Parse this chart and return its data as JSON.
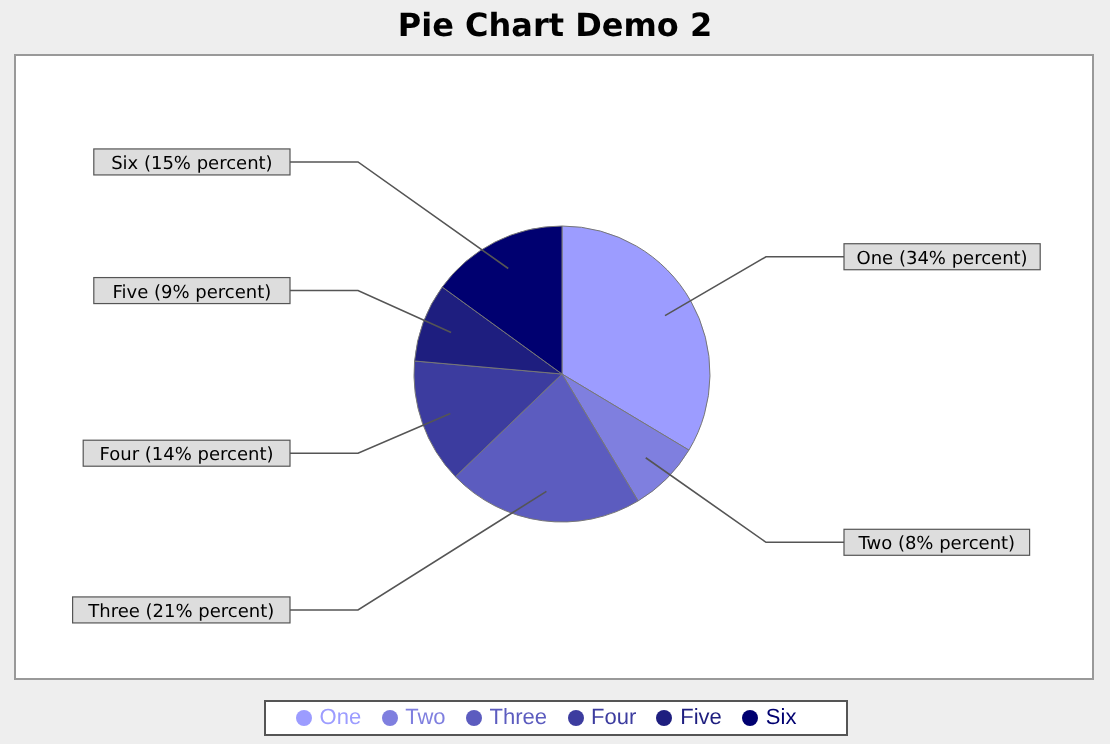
{
  "chart_data": {
    "type": "pie",
    "title": "Pie Chart Demo 2",
    "categories": [
      "One",
      "Two",
      "Three",
      "Four",
      "Five",
      "Six"
    ],
    "values": [
      33.6,
      7.8,
      21.4,
      13.6,
      8.6,
      15.0
    ],
    "value_labels": [
      "One (34% percent)",
      "Two (8% percent)",
      "Three (21% percent)",
      "Four (14% percent)",
      "Five (9% percent)",
      "Six (15% percent)"
    ],
    "colors": [
      "#9c9cff",
      "#7f7fdf",
      "#5c5cbf",
      "#3c3c9f",
      "#1e1e7f",
      "#000070"
    ],
    "legend": "bottom"
  }
}
